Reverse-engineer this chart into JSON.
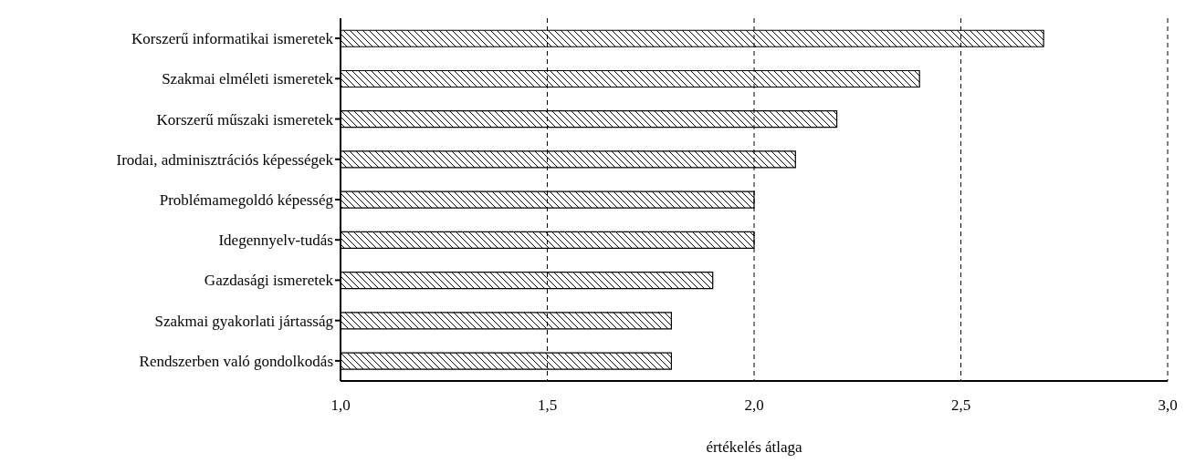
{
  "chart_data": {
    "type": "bar",
    "orientation": "horizontal",
    "xlabel": "értékelés átlaga",
    "categories": [
      "Korszerű informatikai ismeretek",
      "Szakmai elméleti ismeretek",
      "Korszerű műszaki ismeretek",
      "Irodai, adminisztrációs képességek",
      "Problémamegoldó képesség",
      "Idegennyelv-tudás",
      "Gazdasági ismeretek",
      "Szakmai gyakorlati jártasság",
      "Rendszerben való gondolkodás"
    ],
    "values": [
      2.7,
      2.4,
      2.2,
      2.1,
      2.0,
      2.0,
      1.9,
      1.8,
      1.8
    ],
    "color": "#000000",
    "xlim": [
      1,
      3
    ],
    "xticks": [
      {
        "value": 1,
        "label": "1,0"
      },
      {
        "value": 1.5,
        "label": "1,5"
      },
      {
        "value": 2,
        "label": "2,0"
      },
      {
        "value": 2.5,
        "label": "2,5"
      },
      {
        "value": 3,
        "label": "3,0"
      }
    ],
    "grid": "x",
    "line_style": "dashed"
  }
}
